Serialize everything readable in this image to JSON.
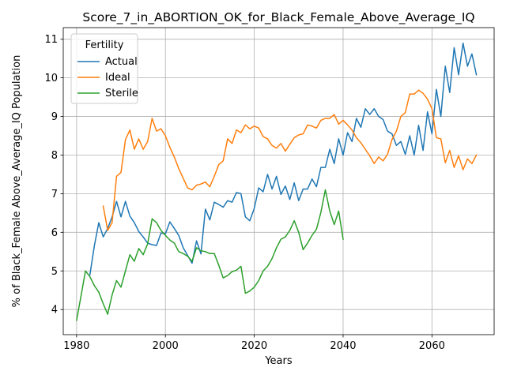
{
  "chart_data": {
    "type": "line",
    "title": "Score_7_in_ABORTION_OK_for_Black_Female_Above_Average_IQ",
    "xlabel": "Years",
    "ylabel": "% of Black_Female Above_Average_IQ Population",
    "xlim": [
      1977,
      2074
    ],
    "ylim": [
      3.35,
      11.3
    ],
    "xticks": [
      1980,
      2000,
      2020,
      2040,
      2060
    ],
    "yticks": [
      4,
      5,
      6,
      7,
      8,
      9,
      10,
      11
    ],
    "grid": true,
    "legend": {
      "title": "Fertility",
      "position": "top-left"
    },
    "series": [
      {
        "name": "Actual",
        "color": "#1f77b4",
        "x": [
          1983,
          1984,
          1985,
          1986,
          1987,
          1988,
          1989,
          1990,
          1991,
          1992,
          1993,
          1994,
          1995,
          1996,
          1997,
          1998,
          1999,
          2000,
          2001,
          2002,
          2003,
          2004,
          2005,
          2006,
          2007,
          2008,
          2009,
          2010,
          2011,
          2012,
          2013,
          2014,
          2015,
          2016,
          2017,
          2018,
          2019,
          2020,
          2021,
          2022,
          2023,
          2024,
          2025,
          2026,
          2027,
          2028,
          2029,
          2030,
          2031,
          2032,
          2033,
          2034,
          2035,
          2036,
          2037,
          2038,
          2039,
          2040,
          2041,
          2042,
          2043,
          2044,
          2045,
          2046,
          2047,
          2048,
          2049,
          2050,
          2051,
          2052,
          2053,
          2054,
          2055,
          2056,
          2057,
          2058,
          2059,
          2060,
          2061,
          2062,
          2063,
          2064,
          2065,
          2066,
          2067,
          2068,
          2069,
          2070
        ],
        "y": [
          4.9,
          5.65,
          6.25,
          5.88,
          6.1,
          6.4,
          6.8,
          6.4,
          6.8,
          6.42,
          6.25,
          6.02,
          5.88,
          5.72,
          5.68,
          5.66,
          5.98,
          5.96,
          6.27,
          6.1,
          5.92,
          5.6,
          5.4,
          5.2,
          5.78,
          5.44,
          6.6,
          6.32,
          6.78,
          6.72,
          6.65,
          6.82,
          6.78,
          7.03,
          7.0,
          6.4,
          6.3,
          6.62,
          7.15,
          7.05,
          7.5,
          7.12,
          7.45,
          6.98,
          7.2,
          6.85,
          7.28,
          6.82,
          7.12,
          7.12,
          7.38,
          7.18,
          7.68,
          7.68,
          8.15,
          7.78,
          8.42,
          8.0,
          8.58,
          8.35,
          8.95,
          8.72,
          9.2,
          9.05,
          9.2,
          9.0,
          8.92,
          8.62,
          8.55,
          8.25,
          8.35,
          8.02,
          8.5,
          8.0,
          8.77,
          8.12,
          9.12,
          8.55,
          9.7,
          9.0,
          10.3,
          9.62,
          10.78,
          10.08,
          10.9,
          10.3,
          10.62,
          10.08
        ]
      },
      {
        "name": "Ideal",
        "color": "#ff7f0e",
        "x": [
          1986,
          1987,
          1988,
          1989,
          1990,
          1991,
          1992,
          1993,
          1994,
          1995,
          1996,
          1997,
          1998,
          1999,
          2000,
          2001,
          2002,
          2003,
          2004,
          2005,
          2006,
          2007,
          2008,
          2009,
          2010,
          2011,
          2012,
          2013,
          2014,
          2015,
          2016,
          2017,
          2018,
          2019,
          2020,
          2021,
          2022,
          2023,
          2024,
          2025,
          2026,
          2027,
          2028,
          2029,
          2030,
          2031,
          2032,
          2033,
          2034,
          2035,
          2036,
          2037,
          2038,
          2039,
          2040,
          2041,
          2042,
          2043,
          2044,
          2045,
          2046,
          2047,
          2048,
          2049,
          2050,
          2051,
          2052,
          2053,
          2054,
          2055,
          2056,
          2057,
          2058,
          2059,
          2060,
          2061,
          2062,
          2063,
          2064,
          2065,
          2066,
          2067,
          2068,
          2069,
          2070
        ],
        "y": [
          6.68,
          6.05,
          6.25,
          7.45,
          7.55,
          8.4,
          8.65,
          8.15,
          8.42,
          8.15,
          8.35,
          8.95,
          8.62,
          8.68,
          8.5,
          8.2,
          7.95,
          7.65,
          7.4,
          7.15,
          7.1,
          7.22,
          7.25,
          7.3,
          7.18,
          7.45,
          7.75,
          7.85,
          8.42,
          8.3,
          8.65,
          8.58,
          8.78,
          8.68,
          8.75,
          8.7,
          8.48,
          8.42,
          8.25,
          8.18,
          8.3,
          8.1,
          8.28,
          8.45,
          8.52,
          8.55,
          8.78,
          8.75,
          8.7,
          8.9,
          8.95,
          8.95,
          9.05,
          8.8,
          8.9,
          8.78,
          8.65,
          8.45,
          8.32,
          8.15,
          7.98,
          7.78,
          7.95,
          7.85,
          8.02,
          8.4,
          8.62,
          9.0,
          9.1,
          9.58,
          9.58,
          9.68,
          9.6,
          9.45,
          9.2,
          8.45,
          8.42,
          7.8,
          8.12,
          7.68,
          7.98,
          7.62,
          7.9,
          7.78,
          8.0
        ]
      },
      {
        "name": "Sterile",
        "color": "#2ca02c",
        "x": [
          1980,
          1981,
          1982,
          1983,
          1984,
          1985,
          1986,
          1987,
          1988,
          1989,
          1990,
          1991,
          1992,
          1993,
          1994,
          1995,
          1996,
          1997,
          1998,
          1999,
          2000,
          2001,
          2002,
          2003,
          2004,
          2005,
          2006,
          2007,
          2008,
          2009,
          2010,
          2011,
          2012,
          2013,
          2014,
          2015,
          2016,
          2017,
          2018,
          2019,
          2020,
          2021,
          2022,
          2023,
          2024,
          2025,
          2026,
          2027,
          2028,
          2029,
          2030,
          2031,
          2032,
          2033,
          2034,
          2035,
          2036,
          2037,
          2038,
          2039,
          2040
        ],
        "y": [
          3.72,
          4.35,
          5.0,
          4.85,
          4.62,
          4.45,
          4.15,
          3.88,
          4.38,
          4.75,
          4.58,
          5.0,
          5.42,
          5.25,
          5.58,
          5.42,
          5.7,
          6.35,
          6.25,
          6.05,
          5.92,
          5.8,
          5.72,
          5.5,
          5.45,
          5.38,
          5.25,
          5.6,
          5.52,
          5.5,
          5.45,
          5.45,
          5.15,
          4.82,
          4.88,
          4.98,
          5.02,
          5.12,
          4.42,
          4.48,
          4.58,
          4.75,
          5.0,
          5.12,
          5.32,
          5.6,
          5.82,
          5.88,
          6.05,
          6.3,
          6.0,
          5.55,
          5.72,
          5.92,
          6.08,
          6.52,
          7.1,
          6.55,
          6.2,
          6.55,
          5.82
        ]
      }
    ]
  }
}
